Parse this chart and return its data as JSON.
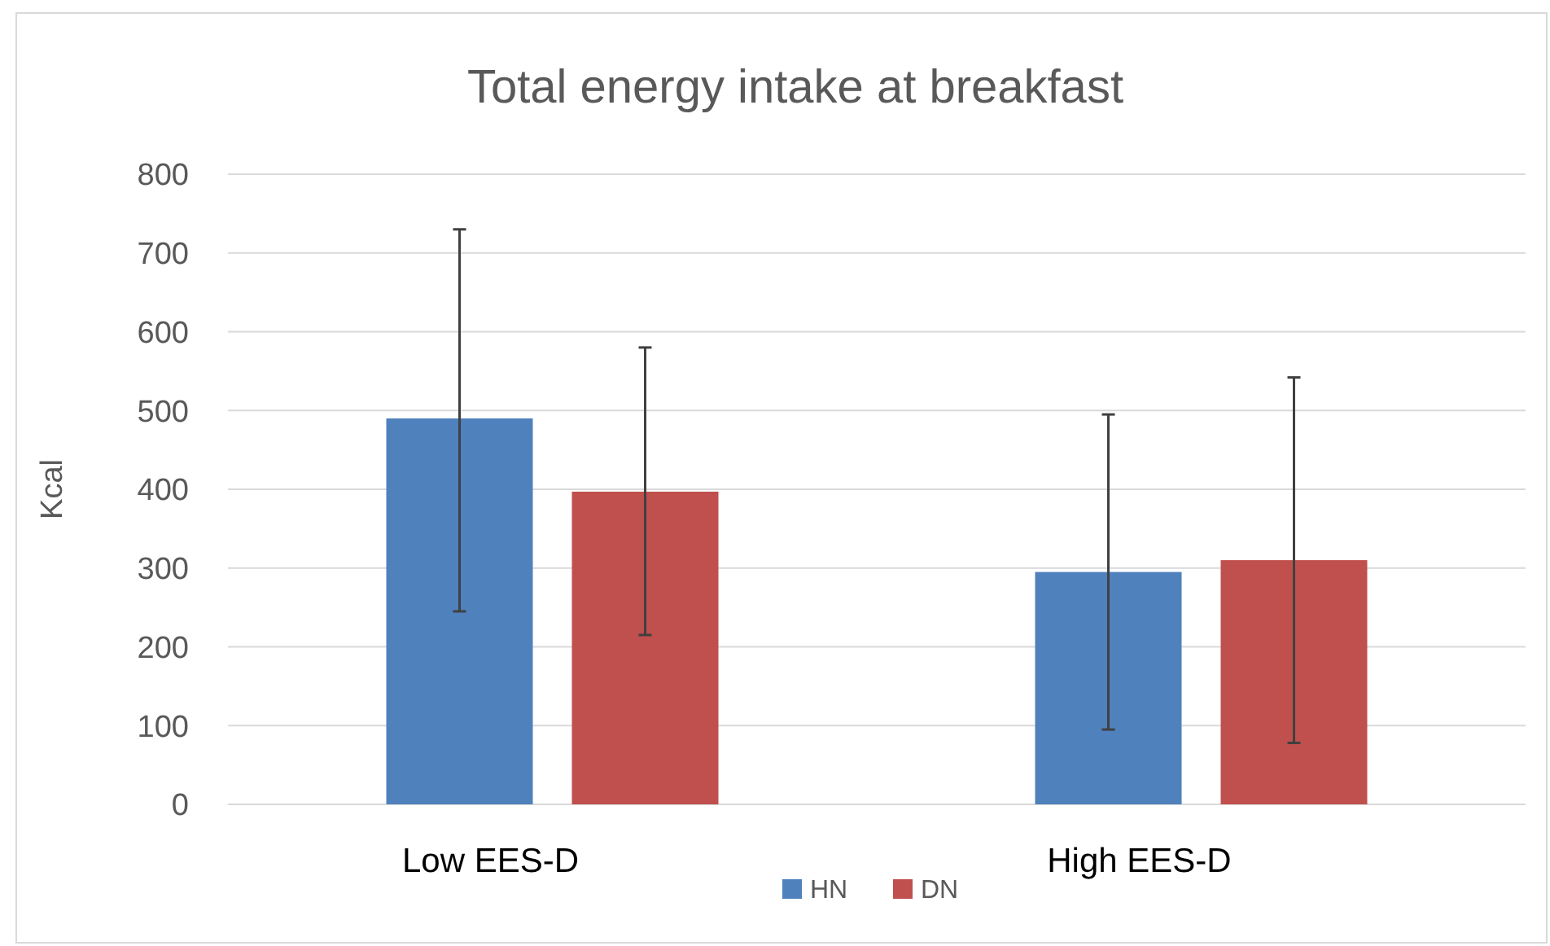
{
  "chart_data": {
    "type": "bar",
    "title": "Total energy intake at breakfast",
    "ylabel": "Kcal",
    "categories": [
      "Low EES-D",
      "High EES-D"
    ],
    "series": [
      {
        "name": "HN",
        "color": "#4f81bd",
        "values": [
          490,
          295
        ],
        "errors": [
          [
            245,
            730
          ],
          [
            95,
            495
          ]
        ]
      },
      {
        "name": "DN",
        "color": "#c0504d",
        "values": [
          397,
          310
        ],
        "errors": [
          [
            215,
            580
          ],
          [
            78,
            542
          ]
        ]
      }
    ],
    "ylim": [
      0,
      800
    ],
    "yticks": [
      0,
      100,
      200,
      300,
      400,
      500,
      600,
      700,
      800
    ],
    "grid": "y",
    "legend": "bottom"
  }
}
